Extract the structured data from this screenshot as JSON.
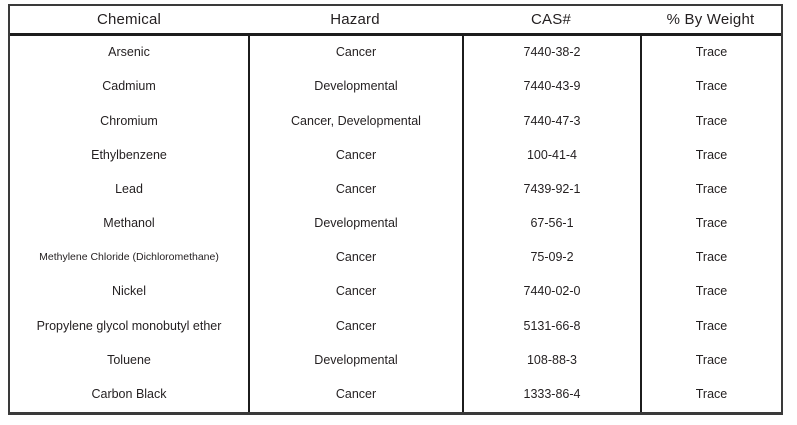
{
  "page": {
    "background_color": "#ffffff",
    "text_color": "#231f20",
    "border_color": "#1c1c1c"
  },
  "table": {
    "columns": [
      "Chemical",
      "Hazard",
      "CAS#",
      "% By Weight"
    ],
    "rows": [
      {
        "chemical": "Arsenic",
        "hazard": "Cancer",
        "cas": "7440-38-2",
        "weight": "Trace"
      },
      {
        "chemical": "Cadmium",
        "hazard": "Developmental",
        "cas": "7440-43-9",
        "weight": "Trace"
      },
      {
        "chemical": "Chromium",
        "hazard": "Cancer, Developmental",
        "cas": "7440-47-3",
        "weight": "Trace"
      },
      {
        "chemical": "Ethylbenzene",
        "hazard": "Cancer",
        "cas": "100-41-4",
        "weight": "Trace"
      },
      {
        "chemical": "Lead",
        "hazard": "Cancer",
        "cas": "7439-92-1",
        "weight": "Trace"
      },
      {
        "chemical": "Methanol",
        "hazard": "Developmental",
        "cas": "67-56-1",
        "weight": "Trace"
      },
      {
        "chemical": "Methylene Chloride (Dichloromethane)",
        "hazard": "Cancer",
        "cas": "75-09-2",
        "weight": "Trace"
      },
      {
        "chemical": "Nickel",
        "hazard": "Cancer",
        "cas": "7440-02-0",
        "weight": "Trace"
      },
      {
        "chemical": "Propylene glycol monobutyl ether",
        "hazard": "Cancer",
        "cas": "5131-66-8",
        "weight": "Trace"
      },
      {
        "chemical": "Toluene",
        "hazard": "Developmental",
        "cas": "108-88-3",
        "weight": "Trace"
      },
      {
        "chemical": "Carbon Black",
        "hazard": "Cancer",
        "cas": "1333-86-4",
        "weight": "Trace"
      }
    ]
  }
}
